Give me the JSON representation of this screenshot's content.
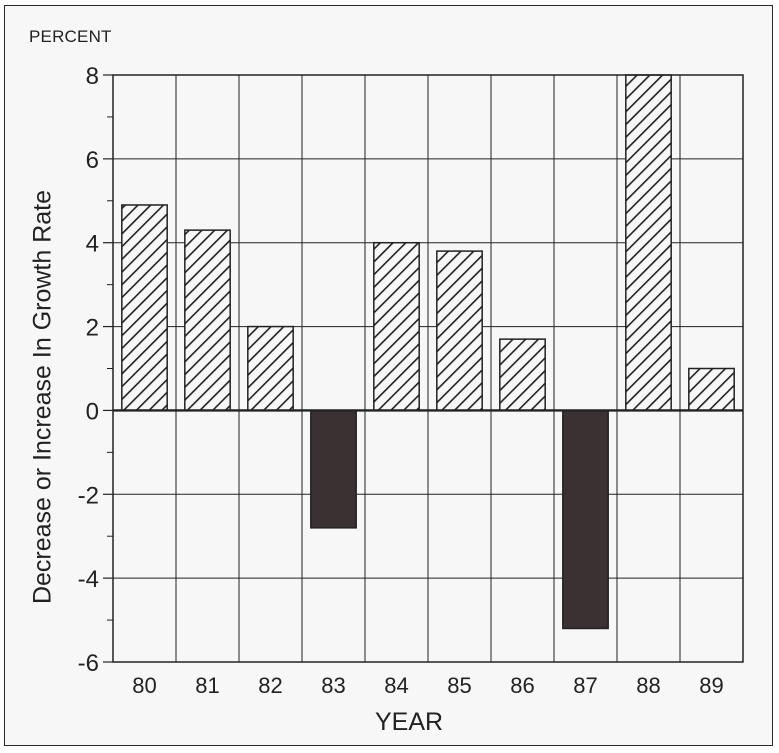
{
  "chart_data": {
    "type": "bar",
    "unit_label": "PERCENT",
    "ylabel": "Decrease or Increase In Growth Rate",
    "xlabel": "YEAR",
    "categories": [
      "80",
      "81",
      "82",
      "83",
      "84",
      "85",
      "86",
      "87",
      "88",
      "89"
    ],
    "values": [
      4.9,
      4.3,
      2.0,
      -2.8,
      4.0,
      3.8,
      1.7,
      -5.2,
      8.0,
      1.0
    ],
    "ylim": [
      -6,
      8
    ],
    "yticks": [
      "8",
      "6",
      "4",
      "2",
      "0",
      "-2",
      "-4",
      "-6"
    ],
    "grid": true,
    "positive_style": "diagonal-hatch",
    "negative_style": "solid",
    "colors": {
      "negative_fill": "#3a3232",
      "hatch": "#222222",
      "background": "#f7f7f7",
      "grid": "#222222"
    }
  }
}
